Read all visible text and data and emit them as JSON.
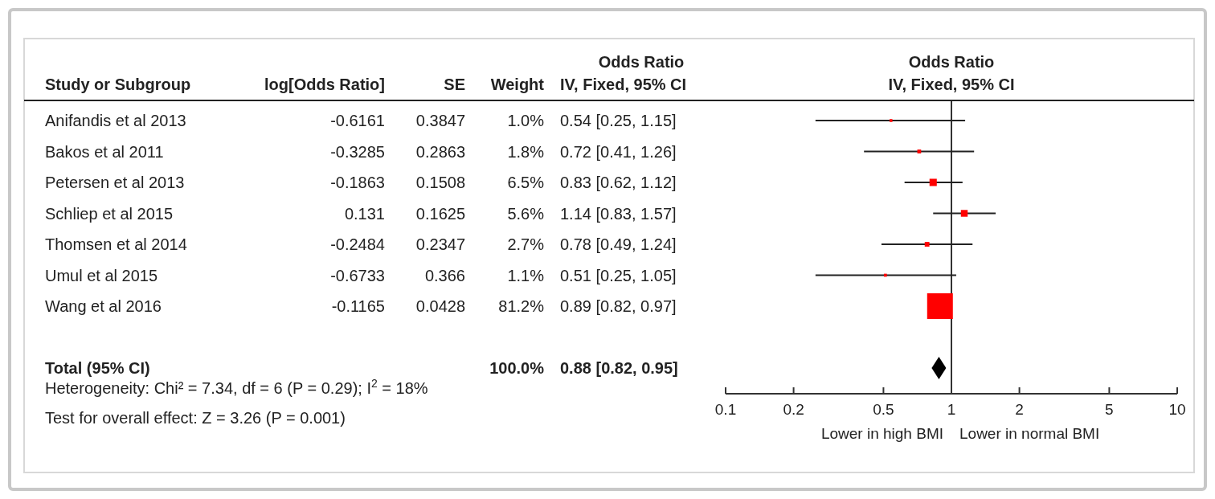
{
  "chart_data": [
    {
      "type": "other",
      "title": "Odds Ratio",
      "ylabel": "Study or Subgroup",
      "data_labels": true,
      "categories": [
        "Anifandis et al 2013",
        "Bakos et al 2011",
        "Petersen et al 2013",
        "Schliep et al 2015",
        "Thomsen et al 2014",
        "Umul et al 2015",
        "Wang et al 2016",
        null,
        "Total (95% CI)"
      ],
      "series": [
        {
          "name": "log[Odds Ratio]",
          "values": [
            -0.6161,
            -0.3285,
            -0.1863,
            0.131,
            -0.2484,
            -0.6733,
            -0.1165,
            null,
            null
          ]
        },
        {
          "name": "SE",
          "values": [
            0.3847,
            0.2863,
            0.1508,
            0.1625,
            0.2347,
            0.366,
            0.0428,
            null,
            null
          ]
        },
        {
          "name": "Weight",
          "values": [
            1.0,
            1.8,
            6.5,
            5.6,
            2.7,
            1.1,
            81.2,
            null,
            100.0
          ],
          "value_labels": [
            "1.0%",
            "1.8%",
            "6.5%",
            "5.6%",
            "2.7%",
            "1.1%",
            "81.2%",
            null,
            "100.0%"
          ]
        },
        {
          "name": "IV, Fixed, 95% CI",
          "values": [
            0.54,
            0.72,
            0.83,
            1.14,
            0.78,
            0.51,
            0.89,
            null,
            0.88
          ],
          "value_labels": [
            "0.54 [0.25, 1.15]",
            "0.72 [0.41, 1.26]",
            "0.83 [0.62, 1.12]",
            "1.14 [0.83, 1.57]",
            "0.78 [0.49, 1.24]",
            "0.51 [0.25, 1.05]",
            "0.89 [0.82, 0.97]",
            null,
            "0.88 [0.82, 0.95]"
          ]
        }
      ],
      "annotations": [
        "Heterogeneity: Chi² = 7.34, df = 6 (P = 0.29); I$^{2}$ = 18%",
        "Test for overall effect: Z = 3.26 (P = 0.001)"
      ]
    },
    {
      "type": "scatter",
      "title": "Odds Ratio",
      "subtitle": "IV, Fixed, 95% CI",
      "orientation": "horizontal",
      "log": "x",
      "tick_labels": "x",
      "categories": [
        null,
        null,
        null,
        null,
        null,
        null,
        null,
        null,
        null
      ],
      "xlim": [
        0.1,
        10
      ],
      "xticks": [
        0.1,
        0.2,
        0.5,
        1,
        2,
        5,
        10
      ],
      "series": [
        {
          "color": "#ff0000",
          "marker": "square",
          "values": [
            0.54,
            0.72,
            0.83,
            1.14,
            0.78,
            0.51,
            0.89,
            null,
            null
          ],
          "errors": [
            [
              0.25,
              1.15
            ],
            [
              0.41,
              1.26
            ],
            [
              0.62,
              1.12
            ],
            [
              0.83,
              1.57
            ],
            [
              0.49,
              1.24
            ],
            [
              0.25,
              1.05
            ],
            null,
            null,
            null
          ],
          "sizes": [
            0.0123,
            0.0222,
            0.08,
            0.069,
            0.0333,
            0.0135,
            1,
            null,
            null
          ]
        },
        {
          "color": "#000000",
          "marker": "diamond",
          "values": [
            null,
            null,
            null,
            null,
            null,
            null,
            null,
            null,
            0.88
          ]
        }
      ],
      "ref_lines": [
        {
          "axis": "x",
          "value": 1,
          "color": "#333333"
        }
      ],
      "annotations": [
        "Lower in high BMI",
        "Lower in normal BMI"
      ]
    }
  ]
}
